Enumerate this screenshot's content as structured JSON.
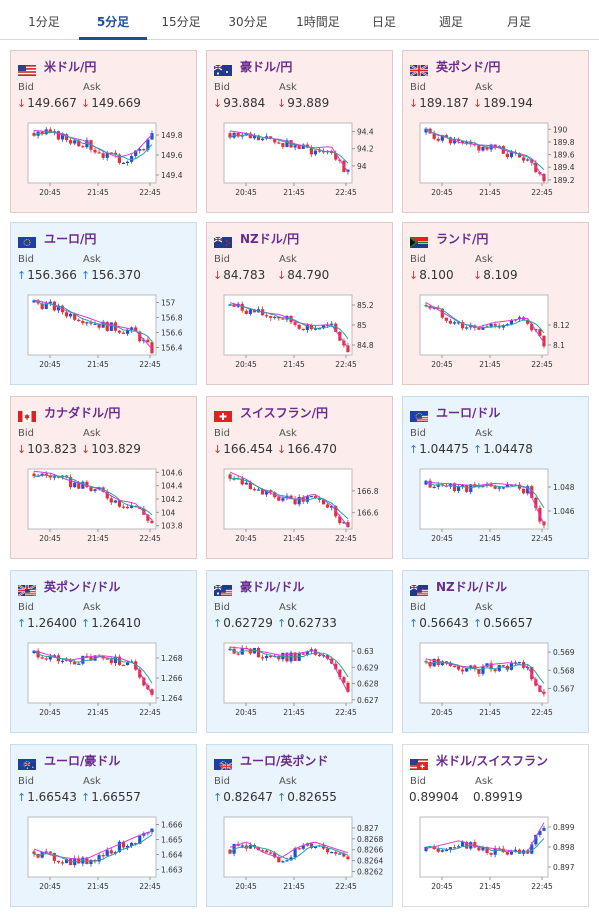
{
  "tabs": [
    {
      "label": "1分足",
      "active": false
    },
    {
      "label": "5分足",
      "active": true
    },
    {
      "label": "15分足",
      "active": false
    },
    {
      "label": "30分足",
      "active": false
    },
    {
      "label": "1時間足",
      "active": false
    },
    {
      "label": "日足",
      "active": false
    },
    {
      "label": "週足",
      "active": false
    },
    {
      "label": "月足",
      "active": false
    }
  ],
  "labels": {
    "bid": "Bid",
    "ask": "Ask"
  },
  "colors": {
    "bull": "#1a52d6",
    "bear": "#e0303a",
    "ma1": "#d93ad9",
    "ma2": "#29a3a3",
    "down_bg": "#fcedec",
    "up_bg": "#eaf4fc"
  },
  "cards": [
    {
      "pair": "米ドル/円",
      "flag": "us",
      "dir": "down",
      "bid": "149.667",
      "ask": "149.669",
      "chart_data": {
        "type": "candlestick",
        "x_ticks": [
          "20:45",
          "21:45",
          "22:45"
        ],
        "y_ticks": [
          "149.8",
          "149.6",
          "149.4"
        ],
        "ylim": [
          149.32,
          149.92
        ],
        "trend": [
          149.82,
          149.81,
          149.76,
          149.72,
          149.62,
          149.55,
          149.6,
          149.78
        ]
      }
    },
    {
      "pair": "豪ドル/円",
      "flag": "au",
      "dir": "down",
      "bid": "93.884",
      "ask": "93.889",
      "chart_data": {
        "type": "candlestick",
        "x_ticks": [
          "20:45",
          "21:45",
          "22:45"
        ],
        "y_ticks": [
          "94.4",
          "94.2",
          "94"
        ],
        "ylim": [
          93.8,
          94.5
        ],
        "trend": [
          94.38,
          94.35,
          94.3,
          94.28,
          94.22,
          94.18,
          94.2,
          93.9
        ]
      }
    },
    {
      "pair": "英ポンド/円",
      "flag": "uk",
      "dir": "down",
      "bid": "189.187",
      "ask": "189.194",
      "chart_data": {
        "type": "candlestick",
        "x_ticks": [
          "20:45",
          "21:45",
          "22:45"
        ],
        "y_ticks": [
          "190",
          "189.8",
          "189.6",
          "189.4",
          "189.2"
        ],
        "ylim": [
          189.15,
          190.1
        ],
        "trend": [
          189.95,
          189.85,
          189.75,
          189.72,
          189.7,
          189.6,
          189.55,
          189.2
        ]
      }
    },
    {
      "pair": "ユーロ/円",
      "flag": "eu",
      "dir": "up",
      "bid": "156.366",
      "ask": "156.370",
      "chart_data": {
        "type": "candlestick",
        "x_ticks": [
          "20:45",
          "21:45",
          "22:45"
        ],
        "y_ticks": [
          "157",
          "156.8",
          "156.6",
          "156.4"
        ],
        "ylim": [
          156.3,
          157.1
        ],
        "trend": [
          157.0,
          156.95,
          156.85,
          156.78,
          156.7,
          156.65,
          156.6,
          156.35
        ]
      }
    },
    {
      "pair": "NZドル/円",
      "flag": "nz",
      "dir": "down",
      "bid": "84.783",
      "ask": "84.790",
      "chart_data": {
        "type": "candlestick",
        "x_ticks": [
          "20:45",
          "21:45",
          "22:45"
        ],
        "y_ticks": [
          "85.2",
          "85",
          "84.8"
        ],
        "ylim": [
          84.7,
          85.3
        ],
        "trend": [
          85.2,
          85.15,
          85.1,
          85.08,
          85.0,
          84.97,
          84.98,
          84.75
        ]
      }
    },
    {
      "pair": "ランド/円",
      "flag": "za",
      "dir": "down",
      "bid": "8.100",
      "ask": "8.109",
      "chart_data": {
        "type": "candlestick",
        "x_ticks": [
          "20:45",
          "21:45",
          "22:45"
        ],
        "y_ticks": [
          "8.12",
          "8.1"
        ],
        "ylim": [
          8.09,
          8.15
        ],
        "trend": [
          8.14,
          8.13,
          8.12,
          8.115,
          8.12,
          8.122,
          8.125,
          8.1
        ]
      }
    },
    {
      "pair": "カナダドル/円",
      "flag": "ca",
      "dir": "down",
      "bid": "103.823",
      "ask": "103.829",
      "chart_data": {
        "type": "candlestick",
        "x_ticks": [
          "20:45",
          "21:45",
          "22:45"
        ],
        "y_ticks": [
          "104.6",
          "104.4",
          "104.2",
          "104",
          "103.8"
        ],
        "ylim": [
          103.75,
          104.65
        ],
        "trend": [
          104.58,
          104.55,
          104.45,
          104.38,
          104.3,
          104.15,
          104.1,
          103.85
        ]
      }
    },
    {
      "pair": "スイスフラン/円",
      "flag": "ch",
      "dir": "down",
      "bid": "166.454",
      "ask": "166.470",
      "chart_data": {
        "type": "candlestick",
        "x_ticks": [
          "20:45",
          "21:45",
          "22:45"
        ],
        "y_ticks": [
          "166.8",
          "166.6"
        ],
        "ylim": [
          166.45,
          167.0
        ],
        "trend": [
          166.95,
          166.88,
          166.78,
          166.72,
          166.7,
          166.75,
          166.65,
          166.45
        ]
      }
    },
    {
      "pair": "ユーロ/ドル",
      "flag": "euus",
      "dir": "up",
      "bid": "1.04475",
      "ask": "1.04478",
      "chart_data": {
        "type": "candlestick",
        "x_ticks": [
          "20:45",
          "21:45",
          "22:45"
        ],
        "y_ticks": [
          "1.048",
          "1.046"
        ],
        "ylim": [
          1.0445,
          1.0495
        ],
        "trend": [
          1.0482,
          1.0481,
          1.048,
          1.0479,
          1.0481,
          1.048,
          1.0478,
          1.0447
        ]
      }
    },
    {
      "pair": "英ポンド/ドル",
      "flag": "ukus",
      "dir": "up",
      "bid": "1.26400",
      "ask": "1.26410",
      "chart_data": {
        "type": "candlestick",
        "x_ticks": [
          "20:45",
          "21:45",
          "22:45"
        ],
        "y_ticks": [
          "1.268",
          "1.266",
          "1.264"
        ],
        "ylim": [
          1.2635,
          1.2695
        ],
        "trend": [
          1.2685,
          1.268,
          1.2675,
          1.2678,
          1.268,
          1.2678,
          1.2672,
          1.2641
        ]
      }
    },
    {
      "pair": "豪ドル/ドル",
      "flag": "auus",
      "dir": "up",
      "bid": "0.62729",
      "ask": "0.62733",
      "chart_data": {
        "type": "candlestick",
        "x_ticks": [
          "20:45",
          "21:45",
          "22:45"
        ],
        "y_ticks": [
          "0.63",
          "0.629",
          "0.628",
          "0.627"
        ],
        "ylim": [
          0.6268,
          0.6305
        ],
        "trend": [
          0.6301,
          0.63,
          0.6298,
          0.6296,
          0.6297,
          0.6299,
          0.6293,
          0.6273
        ]
      }
    },
    {
      "pair": "NZドル/ドル",
      "flag": "nzus",
      "dir": "up",
      "bid": "0.56643",
      "ask": "0.56657",
      "chart_data": {
        "type": "candlestick",
        "x_ticks": [
          "20:45",
          "21:45",
          "22:45"
        ],
        "y_ticks": [
          "0.569",
          "0.568",
          "0.567"
        ],
        "ylim": [
          0.5662,
          0.5695
        ],
        "trend": [
          0.5685,
          0.5683,
          0.5681,
          0.568,
          0.5682,
          0.5683,
          0.5681,
          0.5665
        ]
      }
    },
    {
      "pair": "ユーロ/豪ドル",
      "flag": "euau",
      "dir": "up",
      "bid": "1.66543",
      "ask": "1.66557",
      "chart_data": {
        "type": "candlestick",
        "x_ticks": [
          "20:45",
          "21:45",
          "22:45"
        ],
        "y_ticks": [
          "1.666",
          "1.665",
          "1.664",
          "1.663"
        ],
        "ylim": [
          1.6625,
          1.6665
        ],
        "trend": [
          1.6642,
          1.6638,
          1.6636,
          1.6635,
          1.664,
          1.6645,
          1.665,
          1.6654
        ]
      }
    },
    {
      "pair": "ユーロ/英ポンド",
      "flag": "euuk",
      "dir": "up",
      "bid": "0.82647",
      "ask": "0.82655",
      "chart_data": {
        "type": "candlestick",
        "x_ticks": [
          "20:45",
          "21:45",
          "22:45"
        ],
        "y_ticks": [
          "0.827",
          "0.8268",
          "0.8266",
          "0.8264",
          "0.8262"
        ],
        "ylim": [
          0.8261,
          0.8272
        ],
        "trend": [
          0.8266,
          0.8267,
          0.8265,
          0.8264,
          0.8266,
          0.8267,
          0.8266,
          0.8265
        ]
      }
    },
    {
      "pair": "米ドル/スイスフラン",
      "flag": "usch",
      "dir": "none",
      "bid": "0.89904",
      "ask": "0.89919",
      "chart_data": {
        "type": "candlestick",
        "x_ticks": [
          "20:45",
          "21:45",
          "22:45"
        ],
        "y_ticks": [
          "0.899",
          "0.898",
          "0.897"
        ],
        "ylim": [
          0.8965,
          0.8995
        ],
        "trend": [
          0.8978,
          0.898,
          0.8982,
          0.8979,
          0.8978,
          0.8977,
          0.8976,
          0.8991
        ]
      }
    }
  ]
}
